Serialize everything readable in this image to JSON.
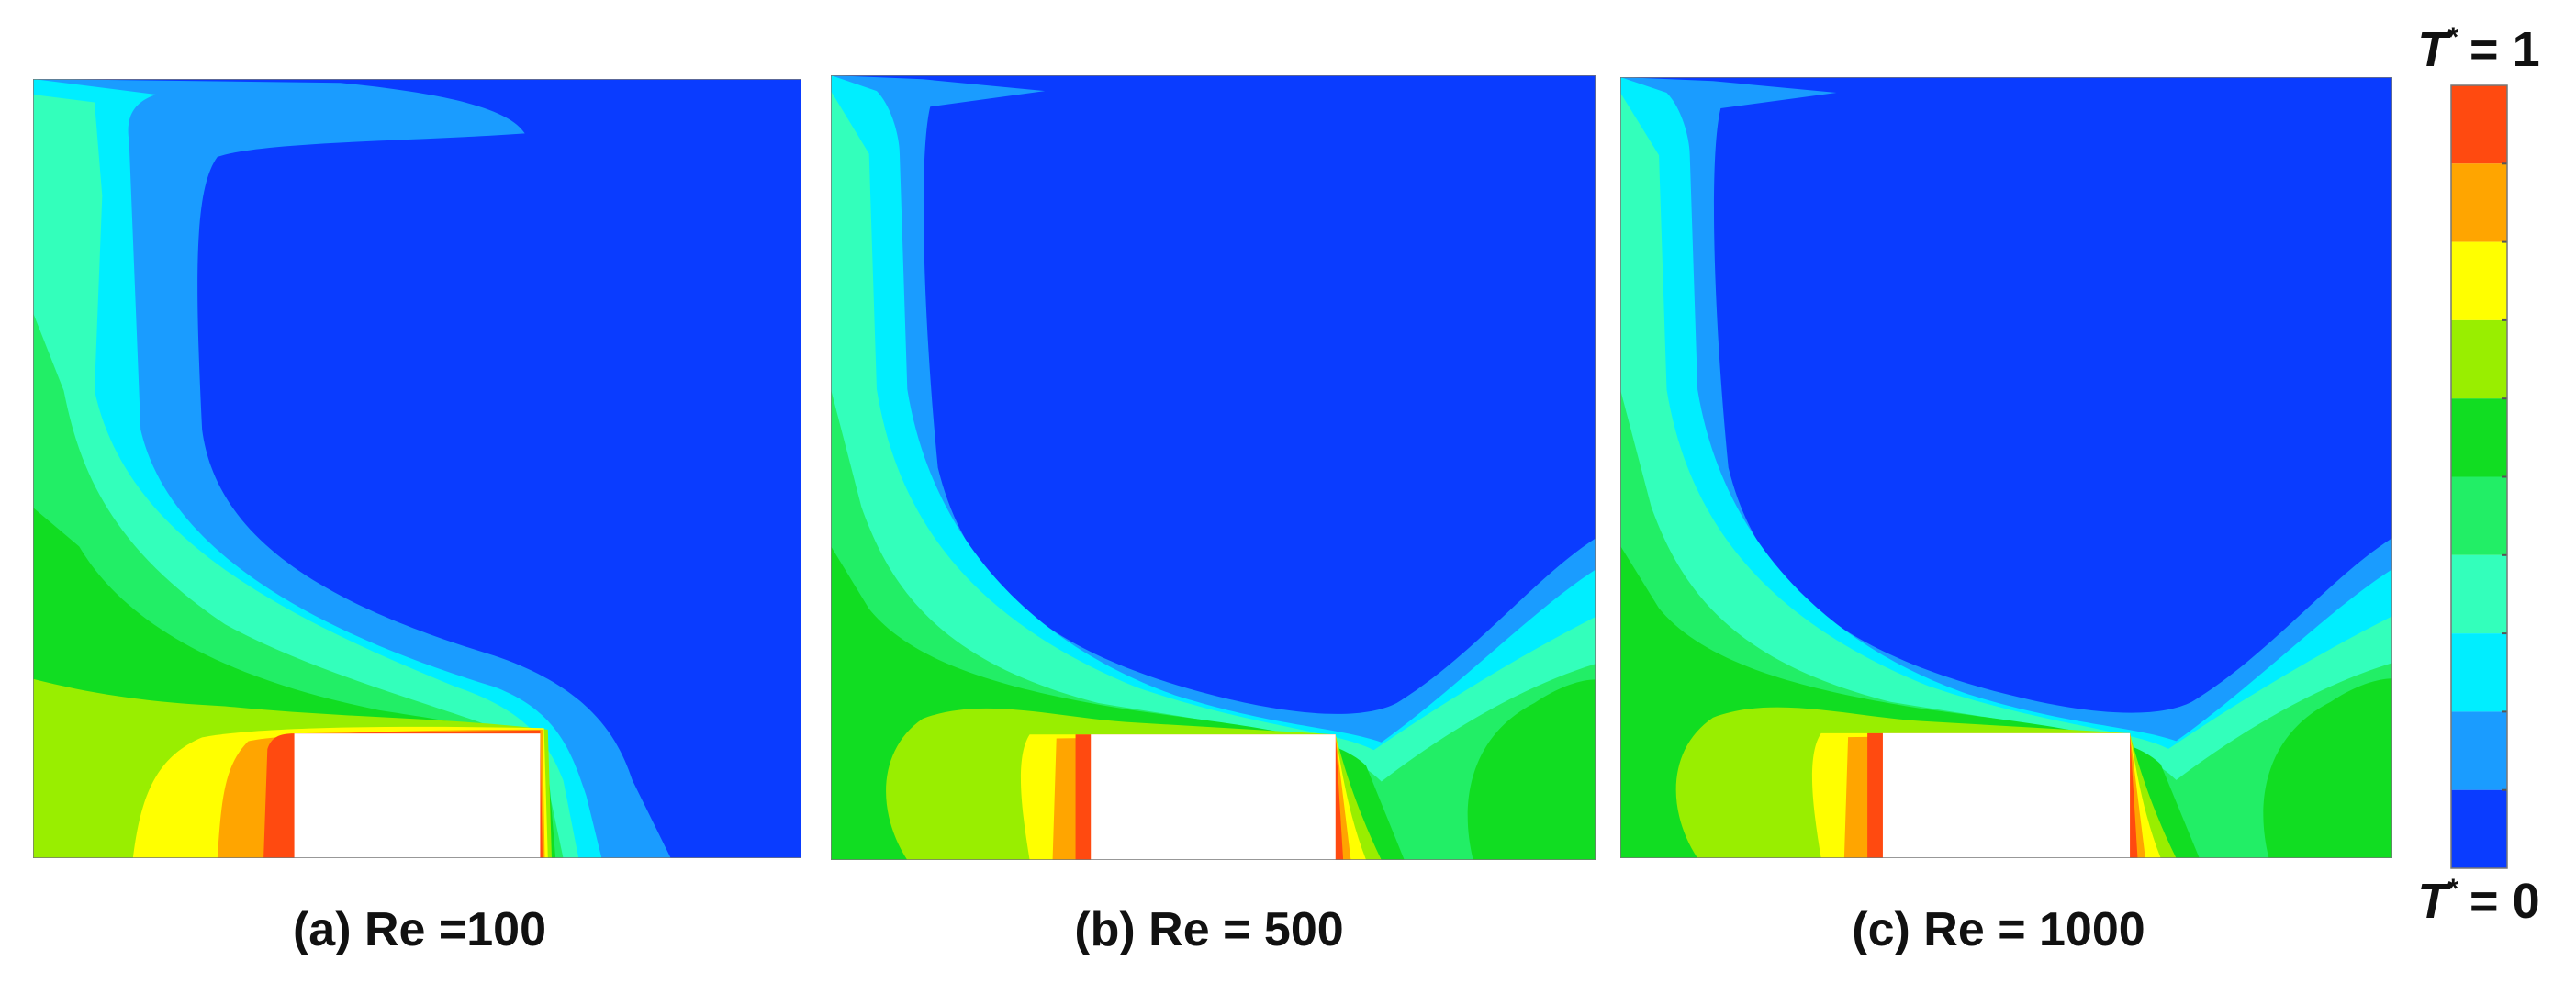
{
  "figure": {
    "panels": [
      {
        "caption": "(a) Re =100"
      },
      {
        "caption": "(b) Re = 500"
      },
      {
        "caption": "(c) Re = 1000"
      }
    ],
    "colorbar": {
      "top_label": {
        "symbol": "T",
        "superscript": "*",
        "text": "= 1"
      },
      "bottom_label": {
        "symbol": "T",
        "superscript": "*",
        "text": "= 0"
      }
    }
  }
}
